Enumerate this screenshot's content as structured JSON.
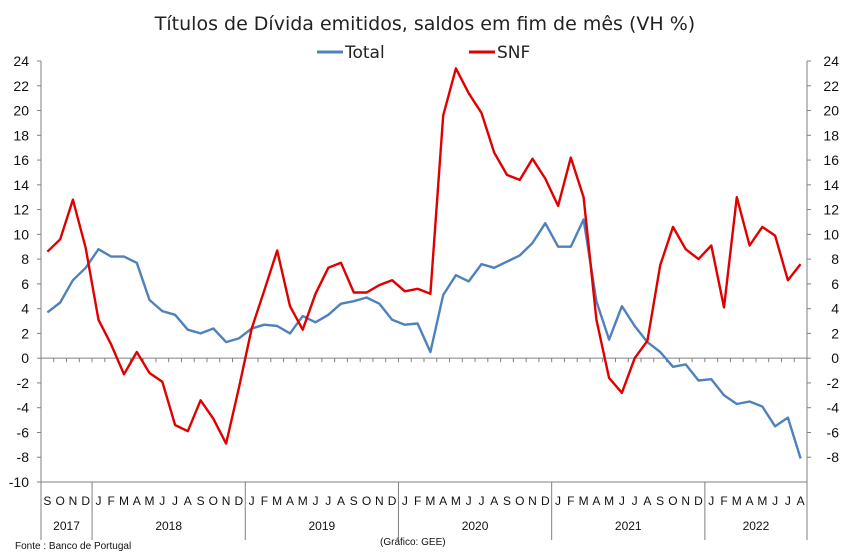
{
  "chart_data": {
    "type": "line",
    "title": "Títulos de Dívida emitidos, saldos em fim de mês  (VH %)",
    "ylim": [
      -10,
      24
    ],
    "y_ticks": [
      -10,
      -8,
      -6,
      -4,
      -2,
      0,
      2,
      4,
      6,
      8,
      10,
      12,
      14,
      16,
      18,
      20,
      22,
      24
    ],
    "secondary_y_ticks": [
      -8,
      -6,
      -4,
      -2,
      0,
      2,
      4,
      6,
      8,
      10,
      12,
      14,
      16,
      18,
      20,
      22,
      24
    ],
    "grid": false,
    "legend_position": "top-center",
    "x": [
      "2017-09",
      "2017-10",
      "2017-11",
      "2017-12",
      "2018-01",
      "2018-02",
      "2018-03",
      "2018-04",
      "2018-05",
      "2018-06",
      "2018-07",
      "2018-08",
      "2018-09",
      "2018-10",
      "2018-11",
      "2018-12",
      "2019-01",
      "2019-02",
      "2019-03",
      "2019-04",
      "2019-05",
      "2019-06",
      "2019-07",
      "2019-08",
      "2019-09",
      "2019-10",
      "2019-11",
      "2019-12",
      "2020-01",
      "2020-02",
      "2020-03",
      "2020-04",
      "2020-05",
      "2020-06",
      "2020-07",
      "2020-08",
      "2020-09",
      "2020-10",
      "2020-11",
      "2020-12",
      "2021-01",
      "2021-02",
      "2021-03",
      "2021-04",
      "2021-05",
      "2021-06",
      "2021-07",
      "2021-08",
      "2021-09",
      "2021-10",
      "2021-11",
      "2021-12",
      "2022-01",
      "2022-02",
      "2022-03",
      "2022-04",
      "2022-05",
      "2022-06",
      "2022-07",
      "2022-08"
    ],
    "month_labels": [
      "S",
      "O",
      "N",
      "D",
      "J",
      "F",
      "M",
      "A",
      "M",
      "J",
      "J",
      "A",
      "S",
      "O",
      "N",
      "D",
      "J",
      "F",
      "M",
      "A",
      "M",
      "J",
      "J",
      "A",
      "S",
      "O",
      "N",
      "D",
      "J",
      "F",
      "M",
      "A",
      "M",
      "J",
      "J",
      "A",
      "S",
      "O",
      "N",
      "D",
      "J",
      "F",
      "M",
      "A",
      "M",
      "J",
      "J",
      "A",
      "S",
      "O",
      "N",
      "D",
      "J",
      "F",
      "M",
      "A",
      "M",
      "J",
      "J",
      "A"
    ],
    "year_groups": [
      {
        "label": "2017",
        "start": 0,
        "count": 4
      },
      {
        "label": "2018",
        "start": 4,
        "count": 12
      },
      {
        "label": "2019",
        "start": 16,
        "count": 12
      },
      {
        "label": "2020",
        "start": 28,
        "count": 12
      },
      {
        "label": "2021",
        "start": 40,
        "count": 12
      },
      {
        "label": "2022",
        "start": 52,
        "count": 8
      }
    ],
    "series": [
      {
        "name": "Total",
        "color": "#4f81bd",
        "values": [
          3.7,
          4.5,
          6.3,
          7.3,
          8.8,
          8.2,
          8.2,
          7.7,
          4.7,
          3.8,
          3.5,
          2.3,
          2.0,
          2.4,
          1.3,
          1.6,
          2.4,
          2.7,
          2.6,
          2.0,
          3.4,
          2.9,
          3.5,
          4.4,
          4.6,
          4.9,
          4.4,
          3.1,
          2.7,
          2.8,
          0.5,
          5.1,
          6.7,
          6.2,
          7.6,
          7.3,
          7.8,
          8.3,
          9.3,
          10.9,
          9.0,
          9.0,
          11.2,
          4.6,
          1.5,
          4.2,
          2.6,
          1.3,
          0.5,
          -0.7,
          -0.5,
          -1.8,
          -1.7,
          -3.0,
          -3.7,
          -3.5,
          -3.9,
          -5.5,
          -4.8,
          -8.1
        ]
      },
      {
        "name": "SNF",
        "color": "#e00000",
        "values": [
          8.6,
          9.6,
          12.8,
          8.9,
          3.1,
          1.1,
          -1.3,
          0.5,
          -1.2,
          -1.9,
          -5.4,
          -5.9,
          -3.4,
          -4.9,
          -6.9,
          -2.4,
          2.4,
          5.5,
          8.7,
          4.2,
          2.3,
          5.2,
          7.3,
          7.7,
          5.3,
          5.3,
          5.9,
          6.3,
          5.4,
          5.6,
          5.2,
          19.6,
          23.4,
          21.4,
          19.8,
          16.6,
          14.8,
          14.4,
          16.1,
          14.5,
          12.3,
          16.2,
          13.0,
          3.1,
          -1.6,
          -2.8,
          0.0,
          1.4,
          7.5,
          10.6,
          8.8,
          8.0,
          9.1,
          4.1,
          13.0,
          9.1,
          10.6,
          9.9,
          6.3,
          7.6
        ]
      }
    ]
  },
  "footer": {
    "source": "Fonte : Banco de Portugal",
    "credit": "(Gráfico: GEE)"
  }
}
